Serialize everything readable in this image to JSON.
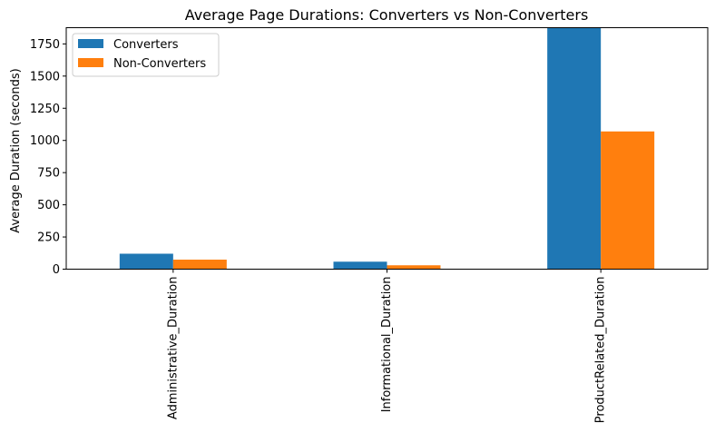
{
  "chart_data": {
    "type": "bar",
    "title": "Average Page Durations: Converters vs Non-Converters",
    "xlabel": "",
    "ylabel": "Average Duration (seconds)",
    "categories": [
      "Administrative_Duration",
      "Informational_Duration",
      "ProductRelated_Duration"
    ],
    "series": [
      {
        "name": "Converters",
        "color": "#1f77b4",
        "values": [
          120,
          58,
          1876
        ]
      },
      {
        "name": "Non-Converters",
        "color": "#ff7f0e",
        "values": [
          74,
          30,
          1070
        ]
      }
    ],
    "ylim": [
      0,
      1876
    ],
    "yticks": [
      0,
      250,
      500,
      750,
      1000,
      1250,
      1500,
      1750
    ],
    "grid": false,
    "legend_position": "top-left"
  }
}
